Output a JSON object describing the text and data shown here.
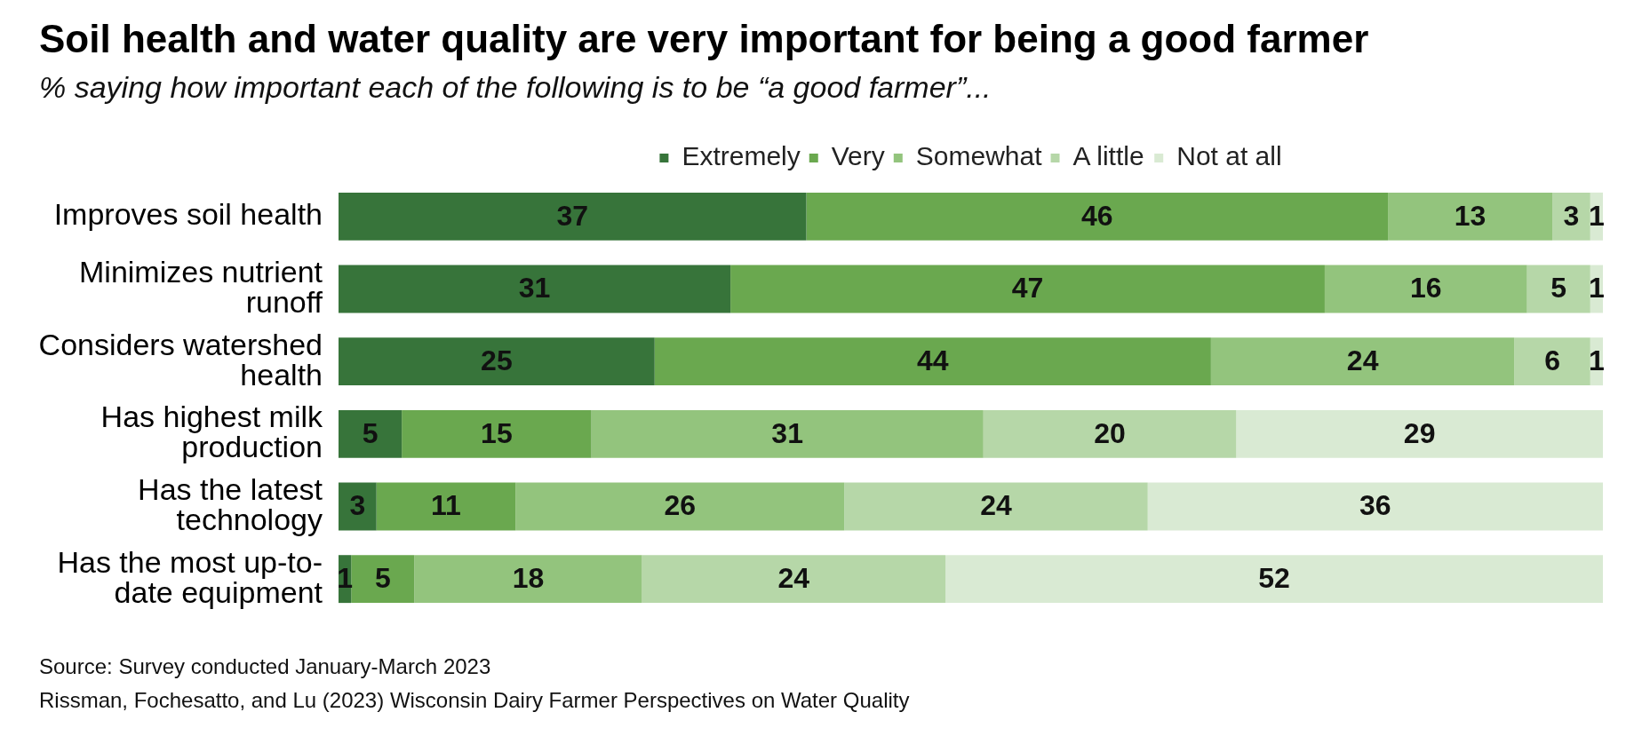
{
  "chart_data": {
    "type": "bar",
    "orientation": "horizontal",
    "stacked": true,
    "title": "Soil health and water quality are very important for being a good farmer",
    "subtitle": "% saying how important each of the following is to be “a good farmer”...",
    "categories": [
      "Improves soil health",
      "Minimizes nutrient runoff",
      "Considers watershed health",
      "Has highest milk production",
      "Has the latest technology",
      "Has the most up-to-date equipment"
    ],
    "series": [
      {
        "name": "Extremely",
        "color": "#37743a",
        "values": [
          37,
          31,
          25,
          5,
          3,
          1
        ]
      },
      {
        "name": "Very",
        "color": "#6aa84f",
        "values": [
          46,
          47,
          44,
          15,
          11,
          5
        ]
      },
      {
        "name": "Somewhat",
        "color": "#93c47d",
        "values": [
          13,
          16,
          24,
          31,
          26,
          18
        ]
      },
      {
        "name": "A little",
        "color": "#b6d7a8",
        "values": [
          3,
          5,
          6,
          20,
          24,
          24
        ]
      },
      {
        "name": "Not at all",
        "color": "#d9ead3",
        "values": [
          1,
          1,
          1,
          29,
          36,
          52
        ]
      }
    ],
    "data_labels": true,
    "legend": "top",
    "tick_labels": "y",
    "annotations": [
      "Source: Survey conducted January-March 2023",
      "Rissman, Fochesatto, and Lu (2023) Wisconsin Dairy Farmer Perspectives on Water Quality"
    ]
  }
}
